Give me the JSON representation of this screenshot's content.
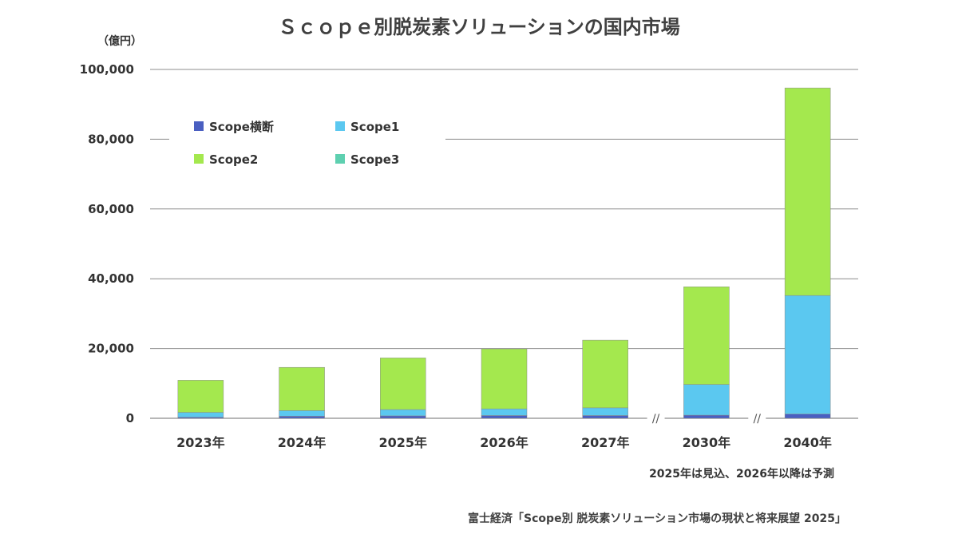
{
  "chart_data": {
    "type": "bar",
    "stacked": true,
    "title": "Ｓｃｏｐｅ別脱炭素ソリューションの国内市場",
    "unit_label": "（億円）",
    "categories": [
      "2023年",
      "2024年",
      "2025年",
      "2026年",
      "2027年",
      "2030年",
      "2040年"
    ],
    "series": [
      {
        "name": "Scope横断",
        "color": "#4A5FC1",
        "values": [
          300,
          600,
          700,
          800,
          800,
          900,
          1200
        ]
      },
      {
        "name": "Scope1",
        "color": "#5BC8F0",
        "values": [
          1400,
          1600,
          1800,
          1900,
          2200,
          8800,
          34000
        ]
      },
      {
        "name": "Scope2",
        "color": "#A4E84E",
        "values": [
          9200,
          12400,
          14800,
          17200,
          19400,
          28000,
          59500
        ]
      },
      {
        "name": "Scope3",
        "color": "#5ED0B0",
        "values": [
          0,
          0,
          0,
          0,
          0,
          0,
          0
        ]
      }
    ],
    "yticks": [
      "100,000",
      "80,000",
      "60,000",
      "40,000",
      "20,000",
      "0"
    ],
    "ylim": [
      0,
      100000
    ],
    "grid": true,
    "legend_position": "top-left",
    "axis_breaks_before": [
      "2030年",
      "2040年"
    ],
    "axis_break_mark": "//",
    "note": "2025年は見込、2026年以降は予測",
    "source": "富士経済「Scope別 脱炭素ソリューション市場の現状と将来展望 2025」"
  }
}
